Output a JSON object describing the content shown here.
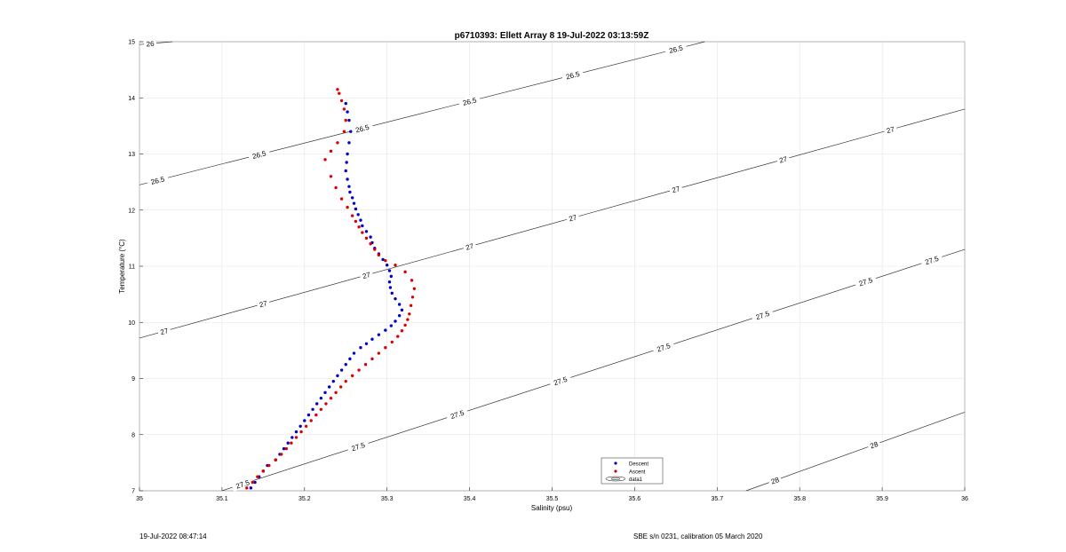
{
  "chart_data": {
    "type": "scatter",
    "title": "p6710393: Ellett Array 8 19-Jul-2022 03:13:59Z",
    "xlabel": "Salinity (psu)",
    "ylabel": "Temperature (°C)",
    "xlim": [
      35,
      36
    ],
    "ylim": [
      7,
      15
    ],
    "xticks": [
      "35",
      "35.1",
      "35.2",
      "35.3",
      "35.4",
      "35.5",
      "35.6",
      "35.7",
      "35.8",
      "35.9",
      "36"
    ],
    "yticks": [
      "7",
      "8",
      "9",
      "10",
      "11",
      "12",
      "13",
      "14",
      "15"
    ],
    "grid": true,
    "legend_position": "bottom-center",
    "contours": [
      {
        "label": "26",
        "points": [
          [
            35.0,
            14.95
          ],
          [
            35.04,
            15.0
          ]
        ],
        "label_at": [
          35.013
        ]
      },
      {
        "label": "26.5",
        "points": [
          [
            35.0,
            12.45
          ],
          [
            35.685,
            15.0
          ]
        ],
        "label_at": [
          35.022,
          35.145,
          35.27,
          35.4,
          35.525,
          35.65
        ]
      },
      {
        "label": "27",
        "points": [
          [
            35.0,
            9.72
          ],
          [
            36.0,
            13.8
          ]
        ],
        "label_at": [
          35.03,
          35.15,
          35.275,
          35.4,
          35.525,
          35.65,
          35.78,
          35.91
        ]
      },
      {
        "label": "27.5",
        "points": [
          [
            35.1,
            7.0
          ],
          [
            36.0,
            11.3
          ]
        ],
        "label_at": [
          35.125,
          35.265,
          35.385,
          35.51,
          35.635,
          35.755,
          35.88,
          35.96
        ]
      },
      {
        "label": "28",
        "points": [
          [
            35.735,
            7.0
          ],
          [
            36.0,
            8.4
          ]
        ],
        "label_at": [
          35.77,
          35.89
        ]
      }
    ],
    "series": [
      {
        "name": "Descent",
        "color": "#0000cc",
        "x": [
          35.135,
          35.14,
          35.145,
          35.15,
          35.155,
          35.165,
          35.17,
          35.175,
          35.18,
          35.185,
          35.19,
          35.195,
          35.2,
          35.205,
          35.21,
          35.215,
          35.22,
          35.225,
          35.23,
          35.235,
          35.24,
          35.245,
          35.25,
          35.255,
          35.26,
          35.268,
          35.275,
          35.282,
          35.29,
          35.298,
          35.305,
          35.31,
          35.315,
          35.318,
          35.315,
          35.31,
          35.306,
          35.304,
          35.303,
          35.305,
          35.303,
          35.3,
          35.295,
          35.29,
          35.285,
          35.282,
          35.28,
          35.275,
          35.27,
          35.268,
          35.265,
          35.262,
          35.26,
          35.258,
          35.255,
          35.254,
          35.252,
          35.25,
          35.251,
          35.252,
          35.254,
          35.256,
          35.254,
          35.252,
          35.25
        ],
        "y": [
          7.05,
          7.15,
          7.25,
          7.35,
          7.45,
          7.55,
          7.65,
          7.75,
          7.85,
          7.95,
          8.05,
          8.15,
          8.25,
          8.35,
          8.45,
          8.55,
          8.65,
          8.75,
          8.85,
          8.95,
          9.05,
          9.15,
          9.25,
          9.35,
          9.45,
          9.55,
          9.62,
          9.7,
          9.78,
          9.86,
          9.94,
          10.02,
          10.12,
          10.22,
          10.32,
          10.42,
          10.52,
          10.62,
          10.72,
          10.82,
          10.92,
          11.02,
          11.12,
          11.22,
          11.32,
          11.42,
          11.52,
          11.62,
          11.72,
          11.82,
          11.92,
          12.02,
          12.12,
          12.22,
          12.32,
          12.42,
          12.55,
          12.7,
          12.85,
          13.0,
          13.2,
          13.4,
          13.6,
          13.75,
          13.9
        ]
      },
      {
        "name": "Ascent",
        "color": "#dd0000",
        "x": [
          35.13,
          35.137,
          35.143,
          35.15,
          35.157,
          35.165,
          35.172,
          35.178,
          35.184,
          35.19,
          35.196,
          35.202,
          35.208,
          35.214,
          35.22,
          35.226,
          35.232,
          35.238,
          35.244,
          35.25,
          35.258,
          35.266,
          35.274,
          35.282,
          35.29,
          35.298,
          35.306,
          35.313,
          35.318,
          35.322,
          35.325,
          35.327,
          35.329,
          35.331,
          35.333,
          35.33,
          35.322,
          35.31,
          35.298,
          35.29,
          35.285,
          35.28,
          35.275,
          35.27,
          35.266,
          35.262,
          35.258,
          35.252,
          35.245,
          35.238,
          35.232,
          35.225,
          35.232,
          35.24,
          35.248,
          35.25,
          35.248,
          35.245,
          35.242,
          35.24
        ],
        "y": [
          7.05,
          7.15,
          7.25,
          7.35,
          7.45,
          7.55,
          7.65,
          7.75,
          7.85,
          7.95,
          8.05,
          8.15,
          8.25,
          8.35,
          8.45,
          8.55,
          8.65,
          8.75,
          8.85,
          8.95,
          9.05,
          9.15,
          9.25,
          9.35,
          9.45,
          9.55,
          9.65,
          9.75,
          9.85,
          9.95,
          10.05,
          10.15,
          10.3,
          10.45,
          10.6,
          10.75,
          10.9,
          11.02,
          11.1,
          11.2,
          11.3,
          11.4,
          11.5,
          11.6,
          11.7,
          11.8,
          11.9,
          12.05,
          12.2,
          12.4,
          12.6,
          12.9,
          13.05,
          13.2,
          13.4,
          13.6,
          13.8,
          13.95,
          14.08,
          14.15
        ]
      }
    ],
    "legend": [
      "Descent",
      "Ascent",
      "data1"
    ]
  },
  "footer": {
    "left": "19-Jul-2022 08:47:14",
    "right": "SBE s/n 0231, calibration 05 March 2020"
  }
}
